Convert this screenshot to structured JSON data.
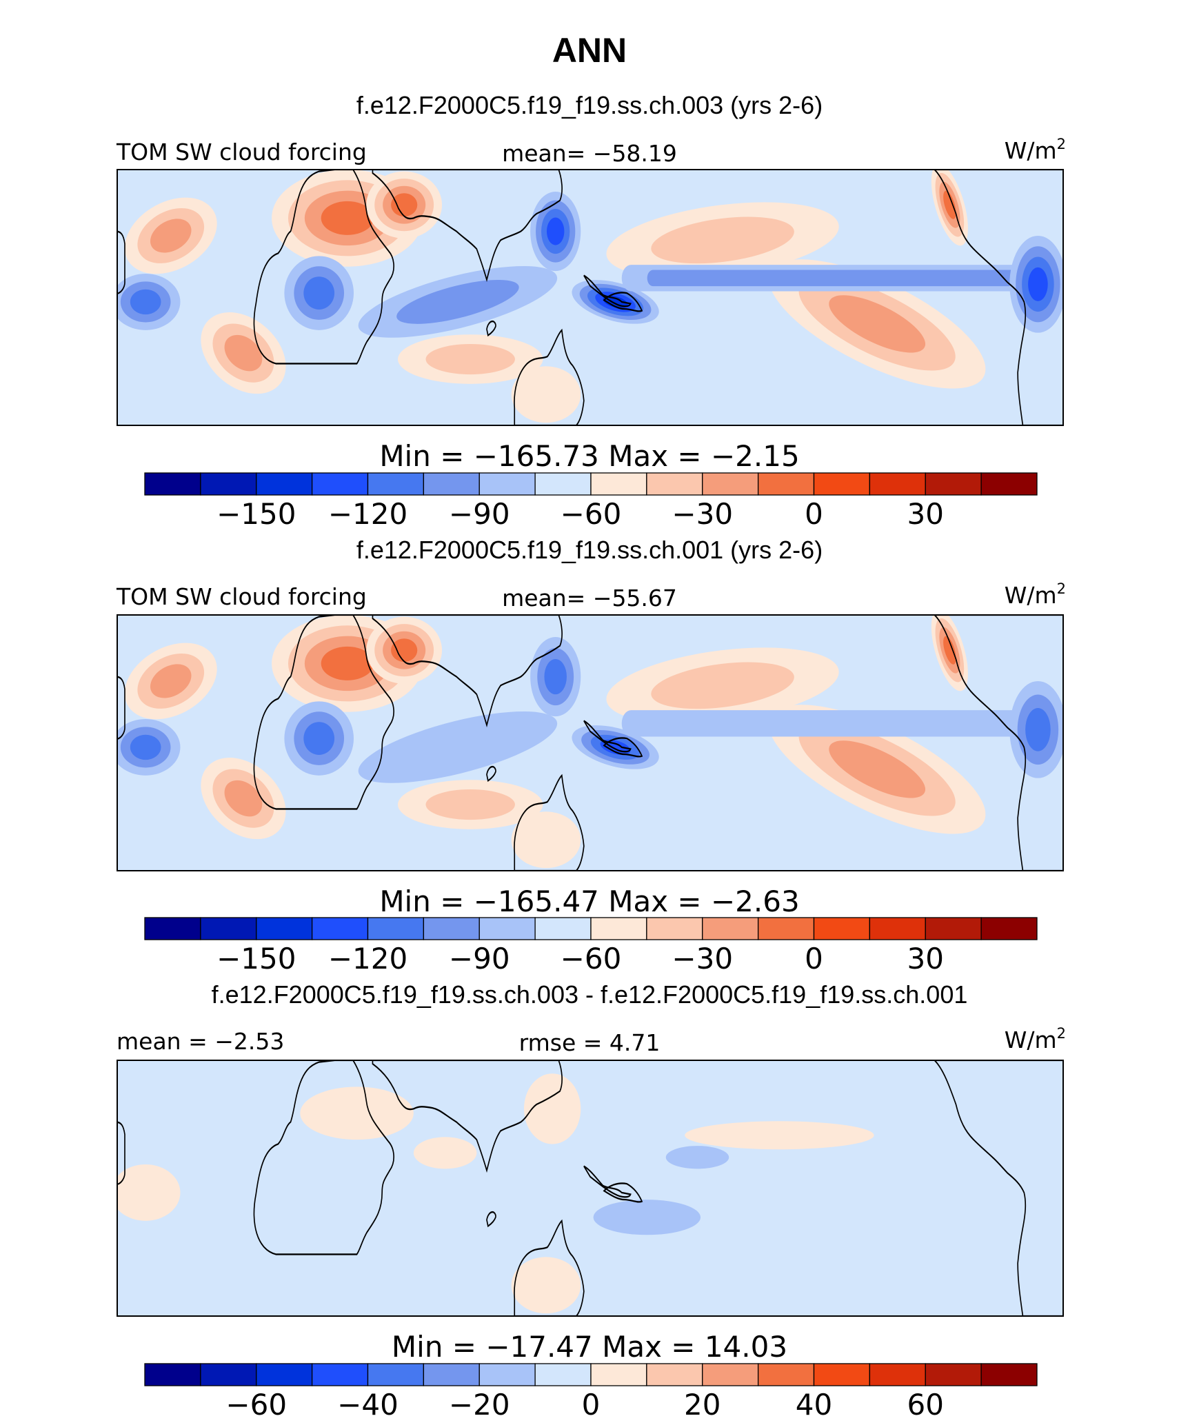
{
  "title": "ANN",
  "colors": {
    "palette": [
      "#00008c",
      "#0018b4",
      "#0033dc",
      "#1f4ffc",
      "#4678f0",
      "#7496ee",
      "#a8c3f8",
      "#d3e6fc",
      "#fde8d8",
      "#fbc7ae",
      "#f59d7b",
      "#f2703f",
      "#f24a14",
      "#de310a",
      "#b21a08",
      "#8c0000"
    ],
    "coastline": "#000000",
    "frame": "#000000"
  },
  "panels": [
    {
      "title": "f.e12.F2000C5.f19_f19.ss.ch.003 (yrs 2-6)",
      "left_label": "TOM SW cloud forcing",
      "center_label": "mean= −58.19",
      "units": "W/m",
      "units_sup": "2",
      "colorbar_label": "Min = −165.73 Max = −2.15",
      "colorbar_ticks": [
        "−150",
        "−120",
        "−90",
        "−60",
        "−30",
        "0",
        "30"
      ],
      "field": {
        "background_level": 7,
        "features": [
          {
            "region": "Sahara / North Africa",
            "level": 11
          },
          {
            "region": "Arabian Peninsula",
            "level": 11
          },
          {
            "region": "North Atlantic subtropics",
            "level": 10
          },
          {
            "region": "South Atlantic",
            "level": 10
          },
          {
            "region": "South Indian Ocean",
            "level": 9
          },
          {
            "region": "North Pacific subtropics",
            "level": 9
          },
          {
            "region": "Southeast Pacific",
            "level": 10
          },
          {
            "region": "California coast",
            "level": 11
          },
          {
            "region": "Australia",
            "level": 8
          },
          {
            "region": "Tropical Indian Ocean",
            "level": 5
          },
          {
            "region": "East Asia / China",
            "level": 3
          },
          {
            "region": "Maritime Continent",
            "level": 2
          },
          {
            "region": "Central Africa",
            "level": 4
          },
          {
            "region": "South America",
            "level": 4
          },
          {
            "region": "Pacific ITCZ",
            "level": 5
          },
          {
            "region": "Central America",
            "level": 3
          }
        ]
      }
    },
    {
      "title": "f.e12.F2000C5.f19_f19.ss.ch.001 (yrs 2-6)",
      "left_label": "TOM SW cloud forcing",
      "center_label": "mean= −55.67",
      "units": "W/m",
      "units_sup": "2",
      "colorbar_label": "Min = −165.47 Max = −2.63",
      "colorbar_ticks": [
        "−150",
        "−120",
        "−90",
        "−60",
        "−30",
        "0",
        "30"
      ],
      "field": {
        "background_level": 7,
        "features": [
          {
            "region": "Sahara / North Africa",
            "level": 11
          },
          {
            "region": "Arabian Peninsula",
            "level": 11
          },
          {
            "region": "North Atlantic subtropics",
            "level": 10
          },
          {
            "region": "South Atlantic",
            "level": 10
          },
          {
            "region": "South Indian Ocean",
            "level": 9
          },
          {
            "region": "North Pacific subtropics",
            "level": 9
          },
          {
            "region": "Southeast Pacific",
            "level": 10
          },
          {
            "region": "California coast",
            "level": 11
          },
          {
            "region": "Australia",
            "level": 8
          },
          {
            "region": "Tropical Indian Ocean",
            "level": 6
          },
          {
            "region": "East Asia / China",
            "level": 4
          },
          {
            "region": "Maritime Continent",
            "level": 3
          },
          {
            "region": "Central Africa",
            "level": 4
          },
          {
            "region": "South America",
            "level": 4
          },
          {
            "region": "Pacific ITCZ",
            "level": 6
          },
          {
            "region": "Central America",
            "level": 4
          }
        ]
      }
    },
    {
      "title": "f.e12.F2000C5.f19_f19.ss.ch.003 - f.e12.F2000C5.f19_f19.ss.ch.001",
      "left_label": "mean = −2.53",
      "center_label": "rmse = 4.71",
      "units": "W/m",
      "units_sup": "2",
      "colorbar_label": "Min = −17.47 Max = 14.03",
      "colorbar_ticks": [
        "−60",
        "−40",
        "−20",
        "0",
        "20",
        "40",
        "60"
      ],
      "field": {
        "background_level": 7,
        "features": [
          {
            "region": "North Africa",
            "level": 8
          },
          {
            "region": "Arabian Sea",
            "level": 8
          },
          {
            "region": "East Asia",
            "level": 8
          },
          {
            "region": "Australia",
            "level": 8
          },
          {
            "region": "South America",
            "level": 8
          },
          {
            "region": "North Pacific",
            "level": 8
          },
          {
            "region": "Western Pacific",
            "level": 6
          },
          {
            "region": "South Pacific",
            "level": 6
          }
        ]
      }
    }
  ]
}
